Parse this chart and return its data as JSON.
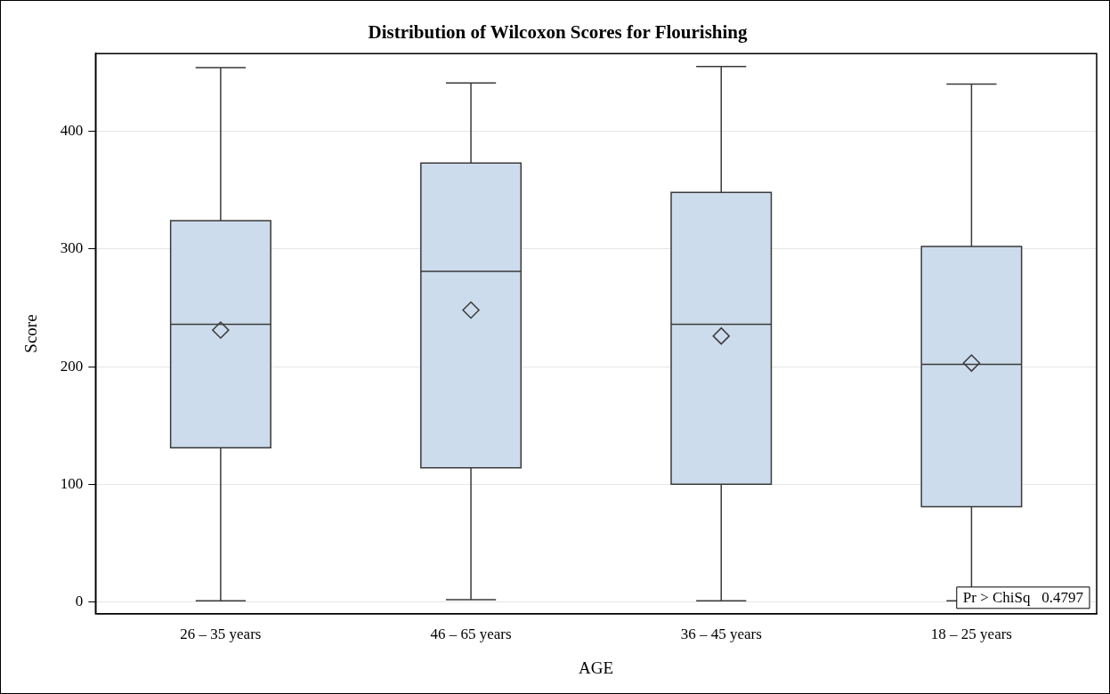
{
  "chart_data": {
    "type": "box",
    "title": "Distribution of Wilcoxon Scores for Flourishing",
    "xlabel": "AGE",
    "ylabel": "Score",
    "categories": [
      "26 – 35 years",
      "46 – 65 years",
      "36 – 45 years",
      "18 – 25 years"
    ],
    "color": "#cddcec",
    "boxes": [
      {
        "low": 1,
        "q1": 131,
        "median": 236,
        "q3": 324,
        "high": 454,
        "mean": 231
      },
      {
        "low": 2,
        "q1": 114,
        "median": 281,
        "q3": 373,
        "high": 441,
        "mean": 248
      },
      {
        "low": 1,
        "q1": 100,
        "median": 236,
        "q3": 348,
        "high": 455,
        "mean": 226
      },
      {
        "low": 1,
        "q1": 81,
        "median": 202,
        "q3": 302,
        "high": 440,
        "mean": 203
      }
    ],
    "ylim": [
      -10,
      466
    ],
    "yticks": [
      0,
      100,
      200,
      300,
      400
    ],
    "grid": "y",
    "legend": false,
    "annotations": [
      "Pr > ChiSq   0.4797"
    ]
  }
}
